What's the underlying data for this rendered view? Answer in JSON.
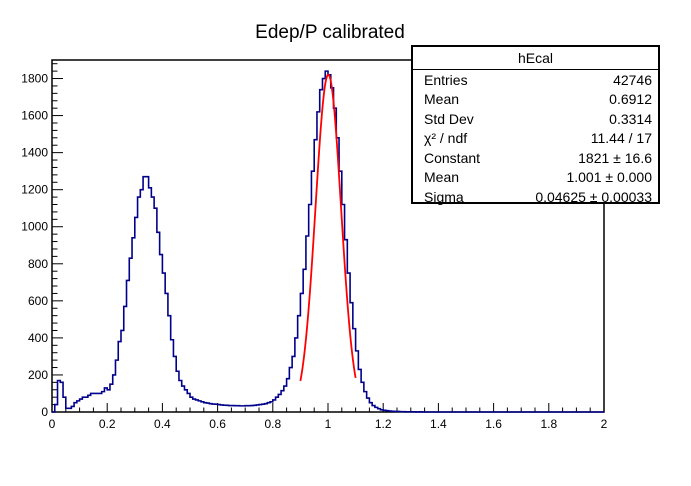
{
  "chart_data": {
    "type": "histogram",
    "title": "Edep/P calibrated",
    "xlim": [
      0,
      2
    ],
    "ylim": [
      0,
      1900
    ],
    "x_ticks": [
      "0",
      "0.2",
      "0.4",
      "0.6",
      "0.8",
      "1",
      "1.2",
      "1.4",
      "1.6",
      "1.8",
      "2"
    ],
    "y_ticks": [
      "0",
      "200",
      "400",
      "600",
      "800",
      "1000",
      "1200",
      "1400",
      "1600",
      "1800"
    ],
    "bin_width": 0.01,
    "histogram_color": "#00008b",
    "fit_color": "#ff0000",
    "fit": {
      "type": "gaus",
      "constant": 1821,
      "mean": 1.001,
      "sigma": 0.04625,
      "range": [
        0.9,
        1.1
      ]
    },
    "bins_x_start": 0,
    "counts": [
      0,
      40,
      170,
      160,
      80,
      20,
      20,
      30,
      50,
      60,
      70,
      80,
      80,
      90,
      100,
      100,
      100,
      100,
      110,
      130,
      120,
      150,
      200,
      280,
      380,
      440,
      570,
      710,
      830,
      940,
      1050,
      1160,
      1200,
      1270,
      1270,
      1210,
      1160,
      1100,
      970,
      850,
      750,
      640,
      520,
      390,
      300,
      220,
      170,
      140,
      120,
      100,
      80,
      70,
      65,
      60,
      55,
      50,
      48,
      45,
      43,
      42,
      40,
      38,
      37,
      36,
      35,
      35,
      34,
      34,
      33,
      33,
      34,
      34,
      35,
      36,
      38,
      40,
      42,
      45,
      50,
      55,
      65,
      80,
      95,
      115,
      140,
      180,
      240,
      300,
      400,
      520,
      640,
      770,
      950,
      1120,
      1300,
      1470,
      1620,
      1740,
      1800,
      1840,
      1820,
      1750,
      1640,
      1480,
      1300,
      1120,
      930,
      750,
      590,
      450,
      330,
      230,
      160,
      110,
      75,
      50,
      35,
      25,
      18,
      12,
      9,
      7,
      5,
      4,
      3,
      3,
      2,
      2,
      1,
      1,
      1,
      1,
      0,
      1,
      0,
      0,
      0,
      0,
      0,
      0,
      0,
      0,
      0,
      0,
      0,
      0,
      0,
      0,
      0,
      0,
      0,
      0,
      0,
      0,
      0,
      0,
      0,
      0,
      0,
      0,
      0,
      0,
      0,
      0,
      0,
      0,
      0,
      0,
      0,
      0,
      0,
      0,
      0,
      0,
      0,
      0,
      0,
      0,
      0,
      0,
      0,
      0,
      0,
      0,
      0,
      0,
      0,
      0,
      0,
      0,
      0,
      0,
      0,
      0,
      0,
      0,
      0,
      0,
      0,
      0
    ]
  },
  "stats": {
    "name": "hEcal",
    "rows": [
      {
        "label": "Entries",
        "value": "42746"
      },
      {
        "label": "Mean",
        "value": "0.6912"
      },
      {
        "label": "Std Dev",
        "value": "0.3314"
      },
      {
        "label": "χ² / ndf",
        "value": "11.44 / 17"
      },
      {
        "label": "Constant",
        "value": "1821 ± 16.6"
      },
      {
        "label": "Mean",
        "value": "1.001 ± 0.000"
      },
      {
        "label": "Sigma",
        "value": "0.04625 ± 0.00033"
      }
    ]
  }
}
